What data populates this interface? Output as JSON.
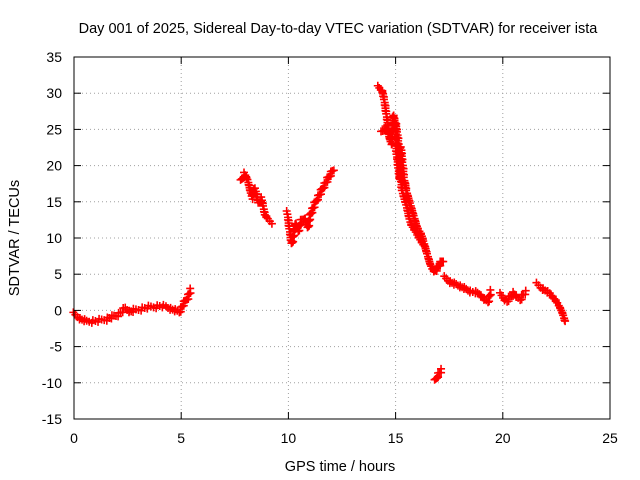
{
  "chart_data": {
    "type": "scatter",
    "title": "Day 001 of 2025, Sidereal Day-to-day VTEC variation (SDTVAR) for receiver ista",
    "xlabel": "GPS time / hours",
    "ylabel": "SDTVAR / TECUs",
    "xlim": [
      0,
      25
    ],
    "ylim": [
      -15,
      35
    ],
    "xticks": [
      0,
      5,
      10,
      15,
      20,
      25
    ],
    "yticks": [
      -15,
      -10,
      -5,
      0,
      5,
      10,
      15,
      20,
      25,
      30,
      35
    ],
    "grid": true,
    "marker": "+",
    "marker_color": "#ff0000",
    "series": [
      {
        "name": "SDTVAR",
        "segments": [
          {
            "x": [
              0.0,
              0.3,
              0.6,
              0.9,
              1.2,
              1.5,
              1.8,
              2.1,
              2.4,
              2.6,
              2.8,
              3.1,
              3.4,
              3.7,
              4.0,
              4.3,
              4.6,
              4.9,
              5.1,
              5.3,
              5.45
            ],
            "y": [
              -0.5,
              -1.2,
              -1.5,
              -1.5,
              -1.4,
              -1.2,
              -0.9,
              -0.5,
              0.3,
              -0.2,
              0.0,
              0.2,
              0.4,
              0.5,
              0.6,
              0.5,
              0.1,
              -0.2,
              0.8,
              1.8,
              2.8
            ]
          },
          {
            "x": [
              7.8,
              7.95,
              8.1,
              8.3,
              8.45,
              8.6,
              8.75,
              8.9,
              9.05,
              9.2
            ],
            "y": [
              17.8,
              18.9,
              18.0,
              15.6,
              16.8,
              14.8,
              15.5,
              13.2,
              12.6,
              12.2
            ]
          },
          {
            "x": [
              9.95,
              10.05,
              10.15,
              10.25,
              10.35,
              10.45,
              10.6,
              10.75,
              10.9,
              11.05,
              11.2,
              11.35,
              11.5,
              11.65,
              11.8,
              11.95,
              12.1
            ],
            "y": [
              13.5,
              11.2,
              9.2,
              10.5,
              12.0,
              11.0,
              12.3,
              12.8,
              11.4,
              13.5,
              14.4,
              15.5,
              16.2,
              17.2,
              17.9,
              18.8,
              19.5
            ]
          },
          {
            "x": [
              14.2,
              14.3,
              14.4,
              14.5,
              14.6,
              14.7,
              14.8,
              14.9,
              15.0,
              15.05,
              15.1,
              15.15,
              15.2,
              15.25,
              15.3,
              15.35,
              15.4,
              15.45,
              15.5,
              15.6,
              15.7,
              15.8,
              15.9,
              16.0,
              16.1,
              16.2,
              16.3,
              16.4,
              16.5,
              16.6,
              16.7,
              16.8,
              16.9,
              17.0,
              17.1,
              17.2
            ],
            "y": [
              30.8,
              30.5,
              30.2,
              28.5,
              26.5,
              24.0,
              23.0,
              27.0,
              25.5,
              21.5,
              20.5,
              19.0,
              18.0,
              22.5,
              21.0,
              19.5,
              18.0,
              17.5,
              16.5,
              15.5,
              14.5,
              13.5,
              12.5,
              11.5,
              11.0,
              10.5,
              9.5,
              8.5,
              7.5,
              6.5,
              5.8,
              5.4,
              5.6,
              6.2,
              6.6,
              6.9
            ]
          },
          {
            "x": [
              14.35,
              14.55,
              14.75,
              15.0,
              15.1,
              15.2,
              15.3,
              15.5,
              15.7,
              15.9,
              16.1,
              16.3
            ],
            "y": [
              24.5,
              25.3,
              24.0,
              26.0,
              24.0,
              20.5,
              16.5,
              14.5,
              12.0,
              11.0,
              10.0,
              9.0
            ]
          },
          {
            "x": [
              16.85,
              16.95,
              17.05,
              17.15
            ],
            "y": [
              -9.8,
              -9.0,
              -8.6,
              -8.3
            ]
          },
          {
            "x": [
              17.3,
              17.5,
              17.7,
              17.9,
              18.1,
              18.3,
              18.5,
              18.7,
              18.9,
              19.1,
              19.3,
              19.45
            ],
            "y": [
              4.5,
              4.0,
              3.7,
              3.5,
              3.2,
              2.9,
              2.6,
              2.5,
              2.3,
              1.6,
              1.2,
              2.6
            ]
          },
          {
            "x": [
              19.9,
              20.05,
              20.2,
              20.35,
              20.5,
              20.65,
              20.8,
              20.95,
              21.1
            ],
            "y": [
              2.2,
              1.6,
              1.2,
              1.9,
              2.4,
              1.8,
              1.5,
              2.2,
              2.5
            ]
          },
          {
            "x": [
              21.6,
              21.75,
              21.9,
              22.05,
              22.2,
              22.35,
              22.5,
              22.65,
              22.8,
              22.9
            ],
            "y": [
              3.6,
              3.2,
              2.9,
              2.6,
              2.3,
              1.8,
              1.2,
              0.5,
              -0.5,
              -1.5
            ]
          }
        ]
      }
    ]
  }
}
